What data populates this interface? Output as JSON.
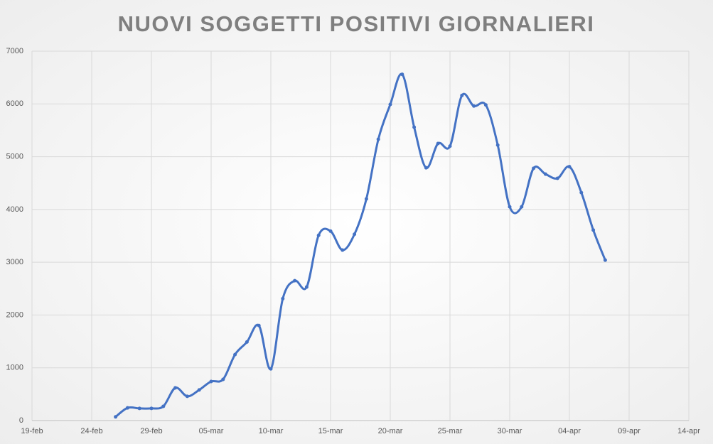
{
  "chart_data": {
    "type": "line",
    "title": "NUOVI SOGGETTI POSITIVI GIORNALIERI",
    "x": [
      "26-feb",
      "27-feb",
      "28-feb",
      "29-feb",
      "01-mar",
      "02-mar",
      "03-mar",
      "04-mar",
      "05-mar",
      "06-mar",
      "07-mar",
      "08-mar",
      "09-mar",
      "10-mar",
      "11-mar",
      "12-mar",
      "13-mar",
      "14-mar",
      "15-mar",
      "16-mar",
      "17-mar",
      "18-mar",
      "19-mar",
      "20-mar",
      "21-mar",
      "22-mar",
      "23-mar",
      "24-mar",
      "25-mar",
      "26-mar",
      "27-mar",
      "28-mar",
      "29-mar",
      "30-mar",
      "31-mar",
      "01-apr",
      "02-apr",
      "03-apr",
      "04-apr",
      "05-apr",
      "06-apr",
      "07-apr"
    ],
    "series": [
      {
        "color": "#4472c4",
        "values": [
          70,
          240,
          230,
          230,
          270,
          620,
          460,
          580,
          740,
          780,
          1250,
          1490,
          1800,
          980,
          2310,
          2650,
          2530,
          3510,
          3590,
          3230,
          3530,
          4200,
          5330,
          5990,
          6560,
          5560,
          4790,
          5250,
          5200,
          6160,
          5960,
          5980,
          5220,
          4050,
          4050,
          4780,
          4670,
          4590,
          4810,
          4320,
          3610,
          3040
        ]
      }
    ],
    "xlim": [
      "19-feb",
      "14-apr"
    ],
    "xticks": [
      "19-feb",
      "24-feb",
      "29-feb",
      "05-mar",
      "10-mar",
      "15-mar",
      "20-mar",
      "25-mar",
      "30-mar",
      "04-apr",
      "09-apr",
      "14-apr"
    ],
    "ylim": [
      0,
      7000
    ],
    "yticks": [
      0,
      1000,
      2000,
      3000,
      4000,
      5000,
      6000,
      7000
    ],
    "grid": true,
    "smooth": true
  }
}
